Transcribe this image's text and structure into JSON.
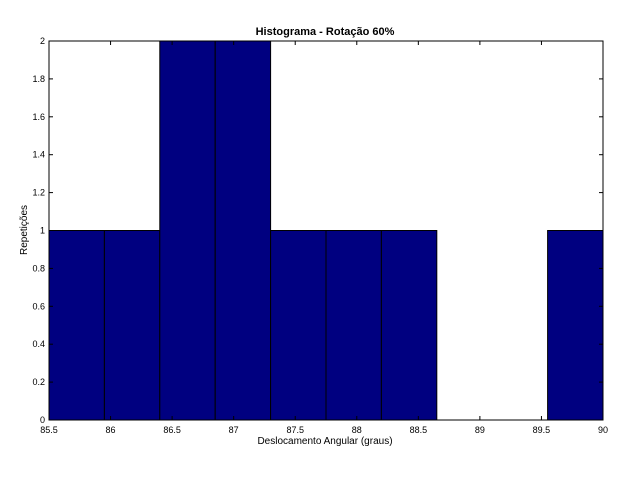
{
  "chart_data": {
    "type": "bar",
    "title": "Histograma - Rotação 60%",
    "xlabel": "Deslocamento Angular (graus)",
    "ylabel": "Repetições",
    "xlim": [
      85.5,
      90
    ],
    "ylim": [
      0,
      2
    ],
    "xticks": [
      "85.5",
      "86",
      "86.5",
      "87",
      "87.5",
      "88",
      "88.5",
      "89",
      "89.5",
      "90"
    ],
    "yticks": [
      "0",
      "0.2",
      "0.4",
      "0.6",
      "0.8",
      "1",
      "1.2",
      "1.4",
      "1.6",
      "1.8",
      "2"
    ],
    "bins": [
      {
        "start": 85.5,
        "end": 85.95,
        "count": 1
      },
      {
        "start": 85.95,
        "end": 86.4,
        "count": 1
      },
      {
        "start": 86.4,
        "end": 86.85,
        "count": 2
      },
      {
        "start": 86.85,
        "end": 87.3,
        "count": 2
      },
      {
        "start": 87.3,
        "end": 87.75,
        "count": 1
      },
      {
        "start": 87.75,
        "end": 88.2,
        "count": 1
      },
      {
        "start": 88.2,
        "end": 88.65,
        "count": 1
      },
      {
        "start": 88.65,
        "end": 89.1,
        "count": 0
      },
      {
        "start": 89.1,
        "end": 89.55,
        "count": 0
      },
      {
        "start": 89.55,
        "end": 90.0,
        "count": 1
      }
    ],
    "bar_color": "#000080",
    "grid": false
  }
}
